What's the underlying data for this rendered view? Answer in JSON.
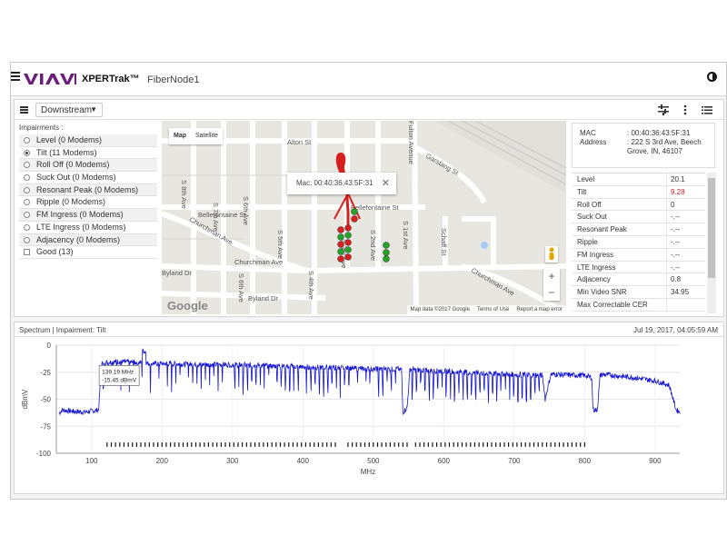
{
  "app": {
    "brand": "XPERTrak™",
    "node": "FiberNode1"
  },
  "toolbar": {
    "direction": "Downstream"
  },
  "impairments": {
    "title": "Impairments :",
    "items": [
      {
        "label": "Level (0 Modems)",
        "type": "radio",
        "checked": false
      },
      {
        "label": "Tilt (11 Modems)",
        "type": "radio",
        "checked": true
      },
      {
        "label": "Roll Off (0 Modems)",
        "type": "radio",
        "checked": false
      },
      {
        "label": "Suck Out (0 Modems)",
        "type": "radio",
        "checked": false
      },
      {
        "label": "Resonant Peak (0 Modems)",
        "type": "radio",
        "checked": false
      },
      {
        "label": "Ripple (0 Modems)",
        "type": "radio",
        "checked": false
      },
      {
        "label": "FM Ingress (0 Modems)",
        "type": "radio",
        "checked": false
      },
      {
        "label": "LTE Ingress (0 Modems)",
        "type": "radio",
        "checked": false
      },
      {
        "label": "Adjacency (0 Modems)",
        "type": "radio",
        "checked": false
      },
      {
        "label": "Good (13)",
        "type": "checkbox",
        "checked": false
      }
    ]
  },
  "map": {
    "type_map": "Map",
    "type_satellite": "Satellite",
    "popup": "Mac: 00:40:36:43:5F:31",
    "streets": [
      "Alton St",
      "Bellefontaine St",
      "Bellefontaine St",
      "Churchman Ave",
      "Churchman Ave",
      "Churchman Ave",
      "Byland Dr",
      "Byland Dr",
      "S 8th Ave",
      "S 7th Ave",
      "S 6th Ave",
      "S 5th Ave",
      "S 4th Ave",
      "S 3rd Ave",
      "S 2nd Ave",
      "S 1st Ave",
      "Schaff St",
      "Garstang St",
      "Fulton Avenue",
      "S 6th Ave"
    ],
    "footer": [
      "Map data ©2017 Google",
      "Terms of Use",
      "Report a map error"
    ],
    "google": "Google"
  },
  "modem": {
    "mac_label": "MAC",
    "mac_value": ": 00:40:36:43:5F:31",
    "address_label": "Address",
    "address_value": ": 222 S 3rd Ave, Beech Grove, IN, 46107"
  },
  "params": [
    {
      "label": "Level",
      "value": "20.1",
      "alert": false
    },
    {
      "label": "Tilt",
      "value": "9.28",
      "alert": true
    },
    {
      "label": "Roll Off",
      "value": "0",
      "alert": false
    },
    {
      "label": "Suck Out",
      "value": "-.--",
      "alert": false
    },
    {
      "label": "Resonant Peak",
      "value": "-.--",
      "alert": false
    },
    {
      "label": "Ripple",
      "value": "-.--",
      "alert": false
    },
    {
      "label": "FM Ingress",
      "value": "-.--",
      "alert": false
    },
    {
      "label": "LTE Ingress",
      "value": "-.--",
      "alert": false
    },
    {
      "label": "Adjacency",
      "value": "0.8",
      "alert": false
    },
    {
      "label": "Min Video SNR",
      "value": "34.95",
      "alert": false
    },
    {
      "label": "Max Correctable CER",
      "value": "",
      "alert": false
    }
  ],
  "spectrum_panel": {
    "title": "Spectrum | Impairment: Tilt",
    "timestamp": "Jul 19, 2017, 04:05:59 AM"
  },
  "chart_data": {
    "type": "line",
    "xlabel": "MHz",
    "ylabel": "dBmV",
    "xlim": [
      50,
      935
    ],
    "ylim": [
      -100,
      0
    ],
    "xticks": [
      100,
      200,
      300,
      400,
      500,
      600,
      700,
      800,
      900
    ],
    "yticks": [
      0,
      -25,
      -50,
      -75,
      -100
    ],
    "tooltip": {
      "x": 139.19,
      "y": -15.45,
      "line1": "139.19 MHz",
      "line2": "-15.45 dBmV"
    },
    "color": "#1414d2",
    "series": [
      {
        "x": [
          54,
          58,
          70,
          90,
          110,
          114,
          116,
          120,
          140,
          160,
          170,
          172,
          180,
          200,
          250,
          300,
          350,
          400,
          450,
          500,
          540,
          542,
          548,
          552,
          560,
          600,
          660,
          700,
          740,
          744,
          752,
          800,
          810,
          812,
          818,
          822,
          826,
          870,
          900,
          920,
          930,
          936
        ],
        "y": [
          -63,
          -60,
          -61,
          -62,
          -60,
          -20,
          -15,
          -16,
          -15,
          -16,
          -16,
          -15,
          -17,
          -17,
          -18,
          -18,
          -19,
          -20,
          -21,
          -22,
          -22,
          -62,
          -58,
          -22,
          -23,
          -24,
          -26,
          -27,
          -28,
          -50,
          -27,
          -28,
          -30,
          -60,
          -60,
          -28,
          -27,
          -30,
          -33,
          -37,
          -60,
          -62
        ]
      }
    ],
    "carrier_markers": "dashes at -92 dBmV across 120-800 MHz"
  }
}
